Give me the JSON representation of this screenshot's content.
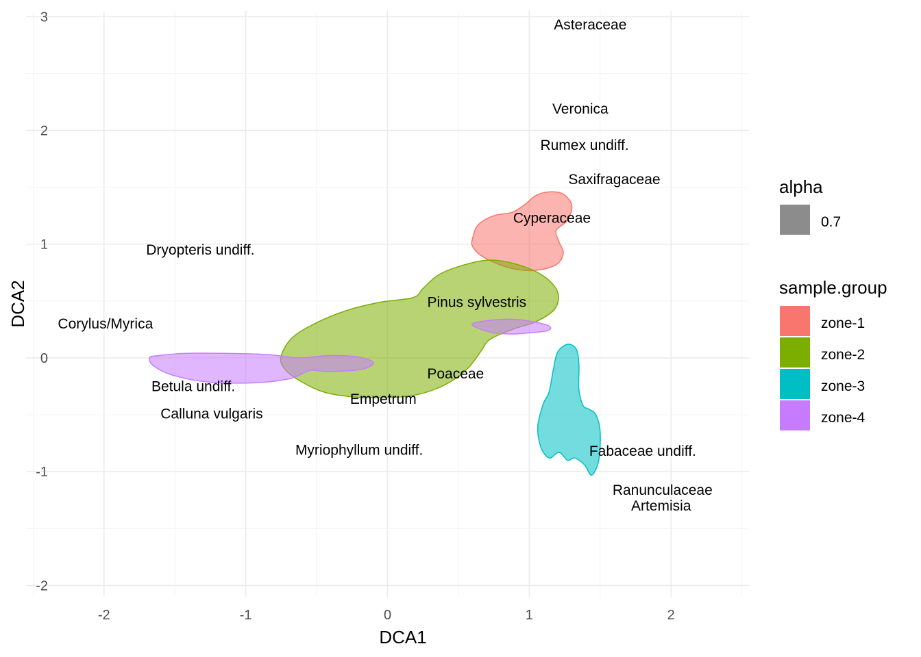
{
  "chart_data": {
    "type": "scatter",
    "xlabel": "DCA1",
    "ylabel": "DCA2",
    "xlim": [
      -2.55,
      2.55
    ],
    "ylim": [
      -2.1,
      3.05
    ],
    "x_ticks": [
      -2,
      -1,
      0,
      1,
      2
    ],
    "y_ticks": [
      -2,
      -1,
      0,
      1,
      2,
      3
    ],
    "grid": true,
    "theme": "minimal",
    "legend_position": "right",
    "legend_alpha": {
      "title": "alpha",
      "label": "0.7",
      "color": "#8c8c8c"
    },
    "legend_group": {
      "title": "sample.group",
      "entries": [
        {
          "name": "zone-1",
          "color": "#F8766D"
        },
        {
          "name": "zone-2",
          "color": "#7CAE00"
        },
        {
          "name": "zone-3",
          "color": "#00BFC4"
        },
        {
          "name": "zone-4",
          "color": "#C77CFF"
        }
      ]
    },
    "taxa": [
      {
        "label": "Asteraceae",
        "x": 1.43,
        "y": 2.93
      },
      {
        "label": "Veronica",
        "x": 1.36,
        "y": 2.19
      },
      {
        "label": "Rumex undiff.",
        "x": 1.39,
        "y": 1.87
      },
      {
        "label": "Saxifragaceae",
        "x": 1.6,
        "y": 1.57
      },
      {
        "label": "Cyperaceae",
        "x": 1.16,
        "y": 1.23
      },
      {
        "label": "Dryopteris undiff.",
        "x": -1.32,
        "y": 0.95
      },
      {
        "label": "Pinus sylvestris",
        "x": 0.63,
        "y": 0.49
      },
      {
        "label": "Corylus/Myrica",
        "x": -1.99,
        "y": 0.3
      },
      {
        "label": "Poaceae",
        "x": 0.48,
        "y": -0.14
      },
      {
        "label": "Betula undiff.",
        "x": -1.37,
        "y": -0.25
      },
      {
        "label": "Empetrum",
        "x": -0.03,
        "y": -0.36
      },
      {
        "label": "Calluna vulgaris",
        "x": -1.24,
        "y": -0.49
      },
      {
        "label": "Myriophyllum undiff.",
        "x": -0.2,
        "y": -0.81
      },
      {
        "label": "Fabaceae undiff.",
        "x": 1.8,
        "y": -0.82
      },
      {
        "label": "Ranunculaceae",
        "x": 1.94,
        "y": -1.16
      },
      {
        "label": "Artemisia",
        "x": 1.93,
        "y": -1.3
      }
    ],
    "regions": [
      {
        "group": "zone-1",
        "alpha": 0.55,
        "points": [
          [
            0.6,
            1.05
          ],
          [
            0.64,
            1.17
          ],
          [
            0.75,
            1.25
          ],
          [
            0.88,
            1.28
          ],
          [
            0.97,
            1.35
          ],
          [
            1.05,
            1.43
          ],
          [
            1.15,
            1.46
          ],
          [
            1.24,
            1.44
          ],
          [
            1.3,
            1.34
          ],
          [
            1.27,
            1.21
          ],
          [
            1.19,
            1.12
          ],
          [
            1.21,
            1.02
          ],
          [
            1.24,
            0.92
          ],
          [
            1.19,
            0.82
          ],
          [
            1.05,
            0.77
          ],
          [
            0.9,
            0.78
          ],
          [
            0.77,
            0.83
          ],
          [
            0.66,
            0.9
          ],
          [
            0.6,
            0.98
          ]
        ]
      },
      {
        "group": "zone-2",
        "alpha": 0.55,
        "points": [
          [
            -0.75,
            0.02
          ],
          [
            -0.67,
            0.18
          ],
          [
            -0.5,
            0.31
          ],
          [
            -0.28,
            0.42
          ],
          [
            -0.05,
            0.49
          ],
          [
            0.18,
            0.53
          ],
          [
            0.25,
            0.61
          ],
          [
            0.36,
            0.73
          ],
          [
            0.52,
            0.81
          ],
          [
            0.72,
            0.86
          ],
          [
            0.92,
            0.82
          ],
          [
            1.1,
            0.72
          ],
          [
            1.2,
            0.58
          ],
          [
            1.18,
            0.43
          ],
          [
            1.05,
            0.32
          ],
          [
            0.88,
            0.25
          ],
          [
            0.72,
            0.16
          ],
          [
            0.66,
            0.06
          ],
          [
            0.56,
            -0.1
          ],
          [
            0.4,
            -0.24
          ],
          [
            0.18,
            -0.33
          ],
          [
            -0.12,
            -0.35
          ],
          [
            -0.42,
            -0.31
          ],
          [
            -0.62,
            -0.2
          ],
          [
            -0.73,
            -0.09
          ]
        ]
      },
      {
        "group": "zone-4",
        "alpha": 0.55,
        "points": [
          [
            -1.68,
            0.0
          ],
          [
            -1.62,
            0.02
          ],
          [
            -1.42,
            0.04
          ],
          [
            -1.15,
            0.04
          ],
          [
            -0.85,
            0.03
          ],
          [
            -0.62,
            0.0
          ],
          [
            -0.42,
            0.02
          ],
          [
            -0.22,
            0.01
          ],
          [
            -0.1,
            -0.04
          ],
          [
            -0.18,
            -0.1
          ],
          [
            -0.42,
            -0.12
          ],
          [
            -0.55,
            -0.11
          ],
          [
            -0.68,
            -0.18
          ],
          [
            -0.95,
            -0.22
          ],
          [
            -1.28,
            -0.21
          ],
          [
            -1.52,
            -0.15
          ],
          [
            -1.65,
            -0.07
          ]
        ]
      },
      {
        "group": "zone-4",
        "alpha": 0.55,
        "points": [
          [
            0.6,
            0.3
          ],
          [
            0.72,
            0.33
          ],
          [
            0.88,
            0.34
          ],
          [
            1.02,
            0.32
          ],
          [
            1.14,
            0.28
          ],
          [
            1.13,
            0.24
          ],
          [
            1.0,
            0.22
          ],
          [
            0.88,
            0.21
          ],
          [
            0.75,
            0.22
          ],
          [
            0.64,
            0.26
          ]
        ]
      },
      {
        "group": "zone-3",
        "alpha": 0.55,
        "points": [
          [
            1.2,
            0.05
          ],
          [
            1.27,
            0.12
          ],
          [
            1.33,
            0.08
          ],
          [
            1.35,
            -0.05
          ],
          [
            1.35,
            -0.28
          ],
          [
            1.38,
            -0.42
          ],
          [
            1.42,
            -0.45
          ],
          [
            1.47,
            -0.5
          ],
          [
            1.5,
            -0.65
          ],
          [
            1.49,
            -0.9
          ],
          [
            1.44,
            -1.03
          ],
          [
            1.39,
            -0.94
          ],
          [
            1.32,
            -0.88
          ],
          [
            1.27,
            -0.9
          ],
          [
            1.21,
            -0.83
          ],
          [
            1.14,
            -0.88
          ],
          [
            1.08,
            -0.78
          ],
          [
            1.06,
            -0.6
          ],
          [
            1.1,
            -0.4
          ],
          [
            1.14,
            -0.3
          ],
          [
            1.17,
            -0.1
          ]
        ]
      }
    ]
  }
}
